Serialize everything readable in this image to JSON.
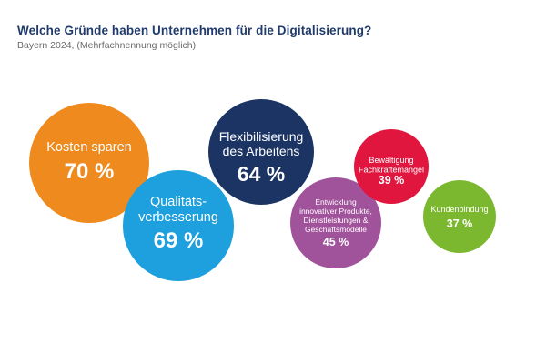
{
  "header": {
    "title": "Welche Gründe haben Unternehmen für die Digitalisierung?",
    "subtitle": "Bayern 2024, (Mehrfachnennung möglich)"
  },
  "chart_data": {
    "type": "bubble",
    "title": "Welche Gründe haben Unternehmen für die Digitalisierung?",
    "subtitle": "Bayern 2024, (Mehrfachnennung möglich)",
    "unit": "%",
    "categories": [
      "Kosten sparen",
      "Qualitätsverbesserung",
      "Flexibilisierung des Arbeitens",
      "Entwicklung innovativer Produkte, Dienstleistungen & Geschäftsmodelle",
      "Bewältigung Fachkräftemangel",
      "Kundenbindung"
    ],
    "values": [
      70,
      69,
      64,
      45,
      39,
      37
    ],
    "bubbles": [
      {
        "key": "kosten-sparen",
        "label_lines": [
          "Kosten sparen"
        ],
        "value": 70,
        "value_text": "70 %",
        "color": "#ee8a1e"
      },
      {
        "key": "qualitaetsverbesserung",
        "label_lines": [
          "Qualitäts-",
          "verbesserung"
        ],
        "value": 69,
        "value_text": "69 %",
        "color": "#1da0dd"
      },
      {
        "key": "flexibilisierung",
        "label_lines": [
          "Flexibilisierung",
          "des Arbeitens"
        ],
        "value": 64,
        "value_text": "64 %",
        "color": "#1b3464"
      },
      {
        "key": "entwicklung",
        "label_lines": [
          "Entwicklung",
          "innovativer Produkte,",
          "Dienstleistungen &",
          "Geschäftsmodelle"
        ],
        "value": 45,
        "value_text": "45 %",
        "color": "#a0529b"
      },
      {
        "key": "fachkraeftemangel",
        "label_lines": [
          "Bewältigung",
          "Fachkräftemangel"
        ],
        "value": 39,
        "value_text": "39 %",
        "color": "#e0163f"
      },
      {
        "key": "kundenbindung",
        "label_lines": [
          "Kundenbindung"
        ],
        "value": 37,
        "value_text": "37 %",
        "color": "#7cb82f"
      }
    ]
  }
}
